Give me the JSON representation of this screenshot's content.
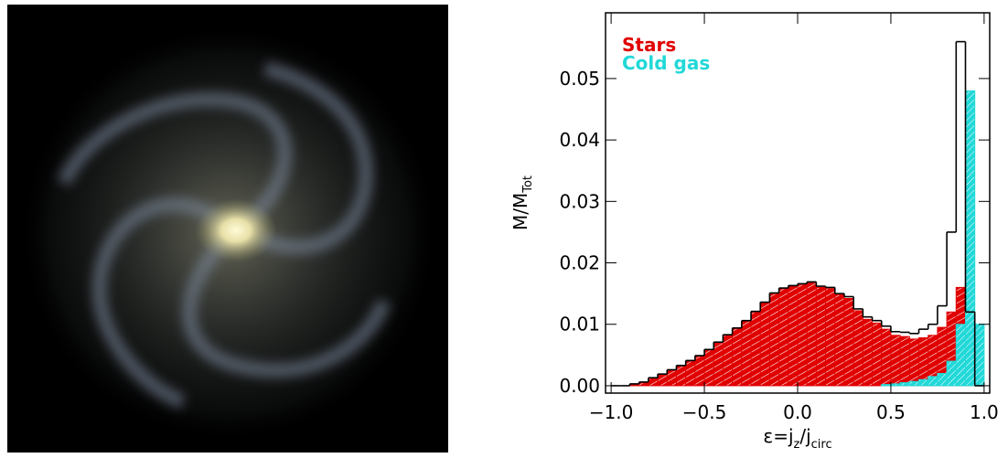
{
  "chart_data": {
    "type": "histogram",
    "legend": "upper left",
    "bins": [
      -1.0,
      -0.95,
      -0.9,
      -0.85,
      -0.8,
      -0.75,
      -0.7,
      -0.65,
      -0.6,
      -0.55,
      -0.5,
      -0.45,
      -0.4,
      -0.35,
      -0.3,
      -0.25,
      -0.2,
      -0.15,
      -0.1,
      -0.05,
      0.0,
      0.05,
      0.1,
      0.15,
      0.2,
      0.25,
      0.3,
      0.35,
      0.4,
      0.45,
      0.5,
      0.55,
      0.6,
      0.65,
      0.7,
      0.75,
      0.8,
      0.85,
      0.9,
      0.95,
      1.0
    ],
    "series": [
      {
        "name": "Stars",
        "color": "#e00000",
        "values": [
          0,
          0,
          0.0002,
          0.0005,
          0.0012,
          0.0018,
          0.0025,
          0.0032,
          0.004,
          0.0048,
          0.0058,
          0.007,
          0.0082,
          0.0093,
          0.0105,
          0.012,
          0.0135,
          0.015,
          0.0158,
          0.0162,
          0.0165,
          0.0168,
          0.016,
          0.0158,
          0.0148,
          0.0142,
          0.0122,
          0.0108,
          0.0102,
          0.0092,
          0.0082,
          0.008,
          0.0076,
          0.0078,
          0.0082,
          0.0095,
          0.012,
          0.016,
          0.004,
          0
        ]
      },
      {
        "name": "Cold gas",
        "color": "#22d8d8",
        "values": [
          0,
          0,
          0,
          0,
          0,
          0,
          0,
          0,
          0,
          0,
          0,
          0,
          0,
          0,
          0,
          0,
          0,
          0,
          0,
          0,
          0,
          0,
          0,
          0,
          0,
          0,
          0,
          0,
          0,
          0.0002,
          0.0003,
          0.0005,
          0.0007,
          0.001,
          0.0015,
          0.002,
          0.004,
          0.01,
          0.048,
          0.01
        ]
      }
    ],
    "line": {
      "color": "#000000",
      "values": [
        0,
        0,
        0.0003,
        0.0006,
        0.0013,
        0.0019,
        0.0026,
        0.0033,
        0.0041,
        0.0049,
        0.0059,
        0.0071,
        0.0083,
        0.0094,
        0.0106,
        0.0121,
        0.0136,
        0.0151,
        0.0159,
        0.0163,
        0.0166,
        0.0169,
        0.0162,
        0.016,
        0.015,
        0.0145,
        0.0125,
        0.0112,
        0.0106,
        0.0097,
        0.0088,
        0.0087,
        0.0085,
        0.0092,
        0.01,
        0.013,
        0.025,
        0.056,
        0.012,
        0
      ]
    },
    "xlim": [
      -1.03,
      1.03
    ],
    "ylim": [
      -0.0012,
      0.0607
    ],
    "xticks": [
      {
        "value": -1.0,
        "label": "−1.0"
      },
      {
        "value": -0.5,
        "label": "−0.5"
      },
      {
        "value": 0.0,
        "label": "0.0"
      },
      {
        "value": 0.5,
        "label": "0.5"
      },
      {
        "value": 1.0,
        "label": "1.0"
      }
    ],
    "yticks": [
      {
        "value": 0,
        "label": "0.00"
      },
      {
        "value": 0.01,
        "label": "0.01"
      },
      {
        "value": 0.02,
        "label": "0.02"
      },
      {
        "value": 0.03,
        "label": "0.03"
      },
      {
        "value": 0.04,
        "label": "0.04"
      },
      {
        "value": 0.05,
        "label": "0.05"
      }
    ],
    "ylabel_parts": [
      "M/M",
      "Tot"
    ],
    "xlabel_parts": [
      "ε=j",
      "z",
      "/j",
      "circ"
    ]
  }
}
